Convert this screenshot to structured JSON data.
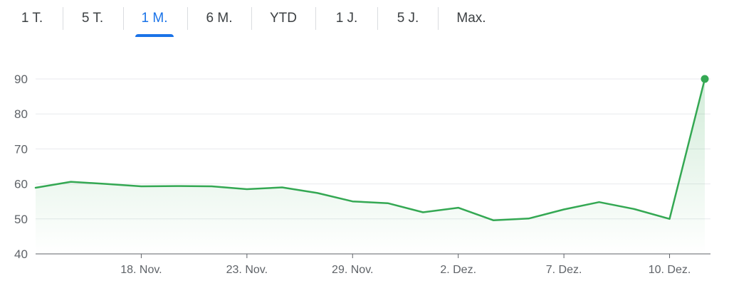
{
  "tabs": [
    {
      "label": "1 T.",
      "active": false
    },
    {
      "label": "5 T.",
      "active": false
    },
    {
      "label": "1 M.",
      "active": true
    },
    {
      "label": "6 M.",
      "active": false
    },
    {
      "label": "YTD",
      "active": false
    },
    {
      "label": "1 J.",
      "active": false
    },
    {
      "label": "5 J.",
      "active": false
    },
    {
      "label": "Max.",
      "active": false
    }
  ],
  "colors": {
    "line": "#34a853",
    "accent": "#1a73e8",
    "grid": "#e8eaed",
    "axis": "#5f6368"
  },
  "chart_data": {
    "type": "line",
    "title": "",
    "xlabel": "",
    "ylabel": "",
    "ylim": [
      40,
      90
    ],
    "yticks": [
      40,
      50,
      60,
      70,
      80,
      90
    ],
    "grid": true,
    "x_tick_labels": [
      "18. Nov.",
      "23. Nov.",
      "29. Nov.",
      "2. Dez.",
      "7. Dez.",
      "10. Dez."
    ],
    "x_tick_index": [
      3,
      6,
      9,
      12,
      15,
      18
    ],
    "series": [
      {
        "values": [
          58.9,
          60.6,
          60.0,
          59.3,
          59.4,
          59.3,
          58.5,
          59.0,
          57.4,
          55.0,
          54.5,
          51.9,
          53.2,
          49.6,
          50.1,
          52.7,
          54.8,
          52.8,
          50.0,
          90.0
        ]
      }
    ]
  }
}
